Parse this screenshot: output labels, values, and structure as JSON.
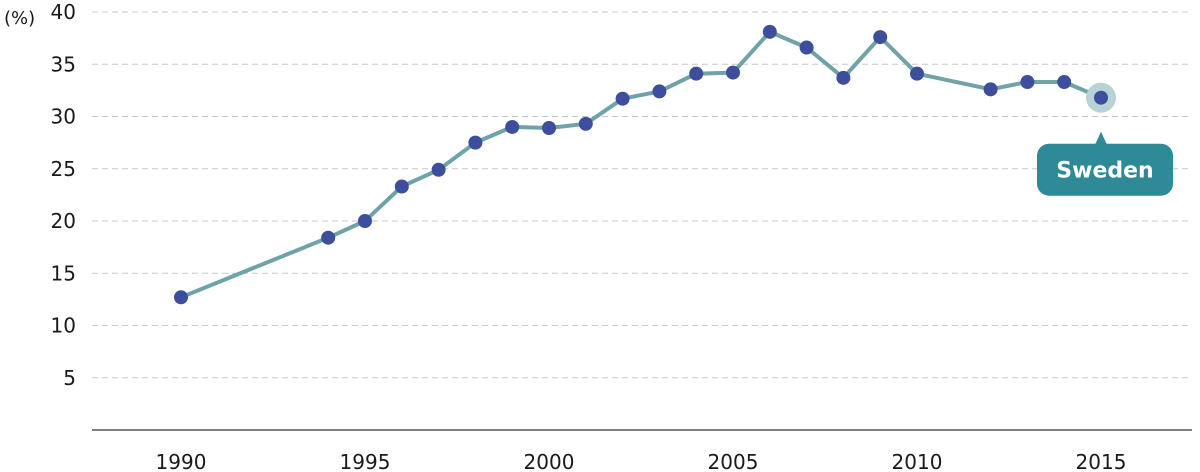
{
  "chart_data": {
    "type": "line",
    "title": "",
    "xlabel": "",
    "ylabel": "(%)",
    "ylim": [
      0,
      40
    ],
    "xlim": [
      1987.5,
      2017.5
    ],
    "y_ticks": [
      5,
      10,
      15,
      20,
      25,
      30,
      35,
      40
    ],
    "x_ticks": [
      1990,
      1995,
      2000,
      2005,
      2010,
      2015
    ],
    "grid": true,
    "series": [
      {
        "name": "Sweden",
        "color": "#6fa3a8",
        "marker_color": "#3d4f9c",
        "x": [
          1990,
          1994,
          1995,
          1996,
          1997,
          1998,
          1999,
          2000,
          2001,
          2002,
          2003,
          2004,
          2005,
          2006,
          2007,
          2008,
          2009,
          2010,
          2012,
          2013,
          2014,
          2015
        ],
        "y": [
          12.7,
          18.4,
          20.0,
          23.3,
          24.9,
          27.5,
          29.0,
          28.9,
          29.3,
          31.7,
          32.4,
          34.1,
          34.2,
          38.1,
          36.6,
          33.7,
          37.6,
          34.1,
          32.6,
          33.3,
          33.3,
          31.8
        ]
      }
    ],
    "annotations": [
      {
        "text": "Sweden",
        "series": "Sweden",
        "x": 2015
      }
    ],
    "callout_color": "#2e8a96",
    "highlight_color": "#b8d3d6"
  }
}
